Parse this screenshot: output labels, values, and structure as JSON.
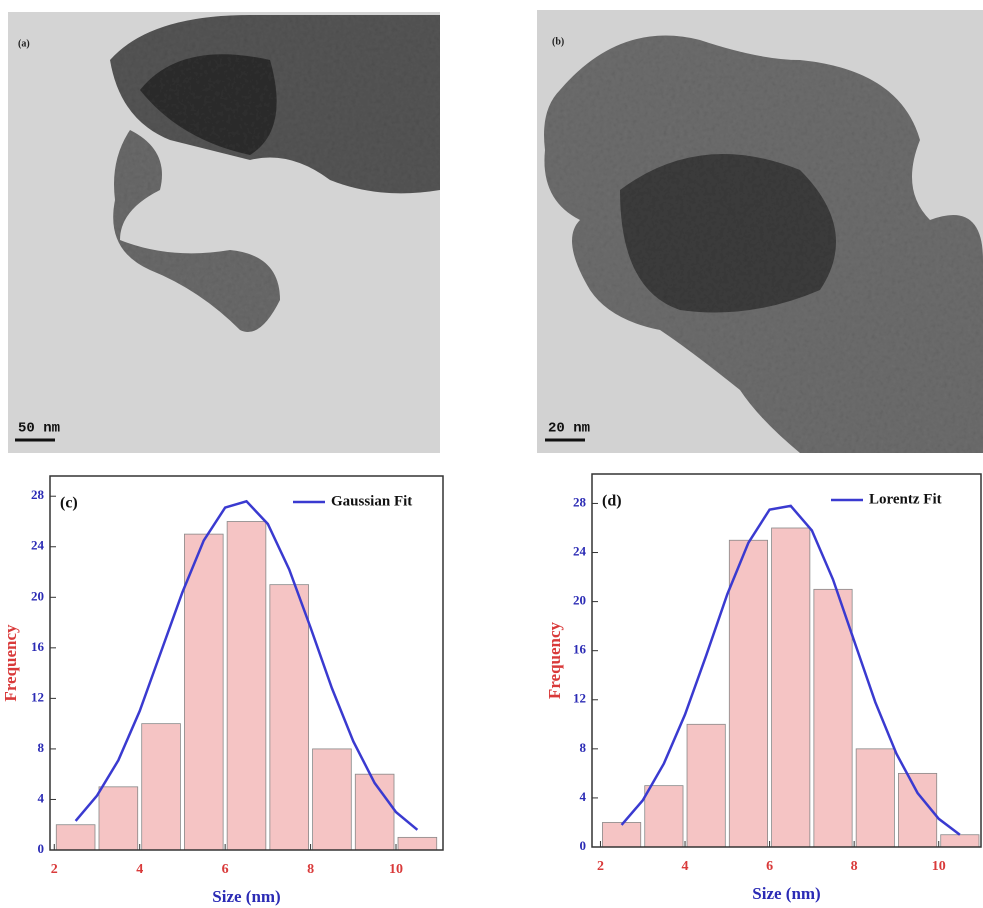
{
  "images": [
    {
      "label": "(a)",
      "scale_bar": "50 nm"
    },
    {
      "label": "(b)",
      "scale_bar": "20 nm"
    }
  ],
  "chart_data": [
    {
      "type": "histogram",
      "label": "(c)",
      "xlabel": "Size (nm)",
      "ylabel": "Frequency",
      "bins": [
        2,
        3,
        4,
        5,
        6,
        7,
        8,
        9,
        10,
        11
      ],
      "values": [
        2,
        5,
        10,
        25,
        26,
        21,
        8,
        6,
        1
      ],
      "color": "#f5c4c4",
      "fit": {
        "name": "Gaussian Fit",
        "color": "#3a3ad0",
        "x": [
          2.5,
          3,
          3.5,
          4,
          4.5,
          5,
          5.5,
          6,
          6.5,
          7,
          7.5,
          8,
          8.5,
          9,
          9.5,
          10,
          10.5
        ],
        "values": [
          2.3,
          4.3,
          7.1,
          11.0,
          15.7,
          20.4,
          24.5,
          27.1,
          27.6,
          25.8,
          22.2,
          17.6,
          12.8,
          8.6,
          5.3,
          3.0,
          1.6
        ]
      },
      "xlim": [
        1.9,
        11.1
      ],
      "ylim": [
        0,
        29.6
      ],
      "xticks": [
        2,
        4,
        6,
        8,
        10
      ],
      "yticks": [
        0,
        4,
        8,
        12,
        16,
        20,
        24,
        28
      ]
    },
    {
      "type": "histogram",
      "label": "(d)",
      "xlabel": "Size (nm)",
      "ylabel": "Frequency",
      "bins": [
        2,
        3,
        4,
        5,
        6,
        7,
        8,
        9,
        10,
        11
      ],
      "values": [
        2,
        5,
        10,
        25,
        26,
        21,
        8,
        6,
        1
      ],
      "color": "#f5c4c4",
      "fit": {
        "name": "Lorentz Fit",
        "color": "#3a3ad0",
        "x": [
          2.5,
          3,
          3.5,
          4,
          4.5,
          5,
          5.5,
          6,
          6.5,
          7,
          7.5,
          8,
          8.5,
          9,
          9.5,
          10,
          10.5
        ],
        "values": [
          1.8,
          3.8,
          6.8,
          10.8,
          15.6,
          20.6,
          24.8,
          27.5,
          27.8,
          25.8,
          21.8,
          16.8,
          11.8,
          7.6,
          4.4,
          2.3,
          1.0
        ]
      },
      "xlim": [
        1.8,
        11.0
      ],
      "ylim": [
        0,
        30.4
      ],
      "xticks": [
        2,
        4,
        6,
        8,
        10
      ],
      "yticks": [
        0,
        4,
        8,
        12,
        16,
        20,
        24,
        28
      ]
    }
  ]
}
